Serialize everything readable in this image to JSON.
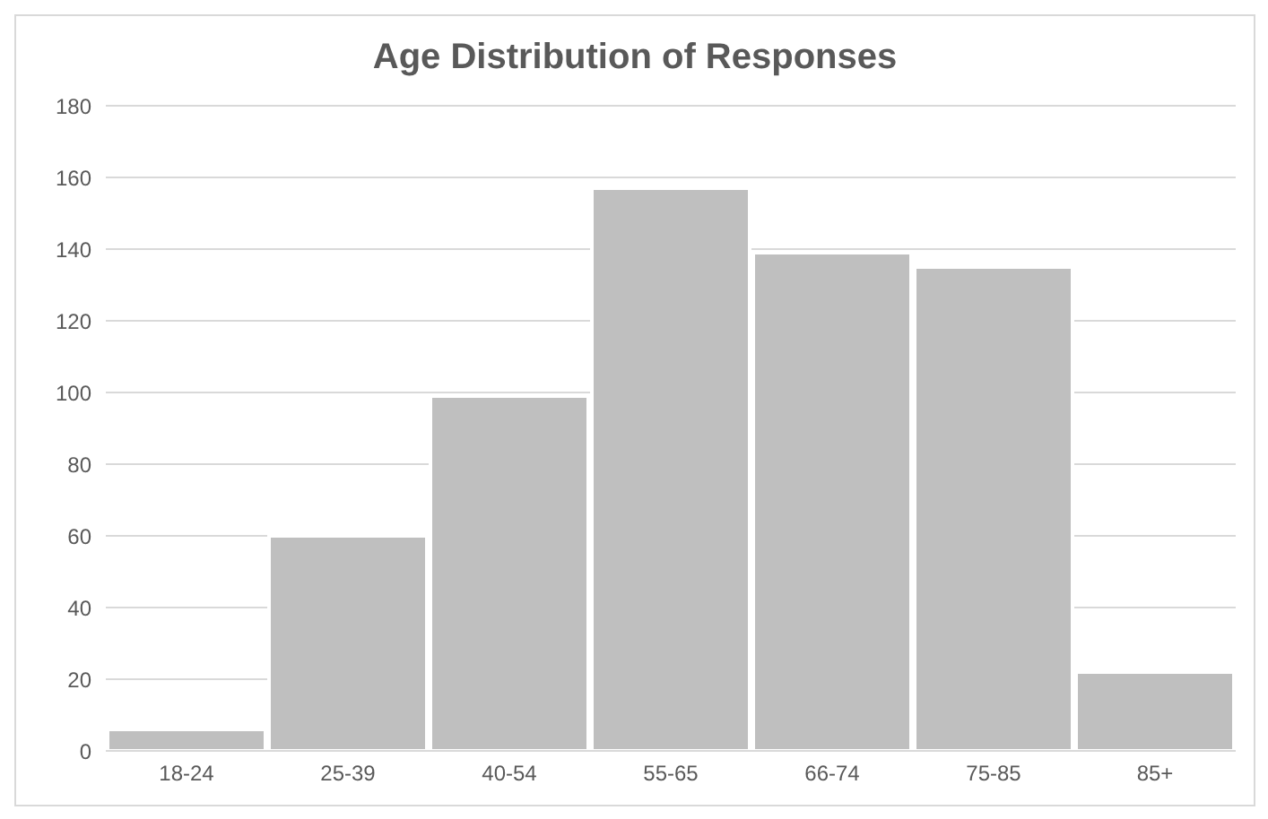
{
  "chart_data": {
    "type": "bar",
    "title": "Age Distribution of Responses",
    "categories": [
      "18-24",
      "25-39",
      "40-54",
      "55-65",
      "66-74",
      "75-85",
      "85+"
    ],
    "values": [
      6,
      60,
      99,
      157,
      139,
      135,
      22
    ],
    "color": "#bfbfbf",
    "ylim": [
      0,
      180
    ],
    "yticks": [
      0,
      20,
      40,
      60,
      80,
      100,
      120,
      140,
      160,
      180
    ],
    "grid": "y"
  }
}
